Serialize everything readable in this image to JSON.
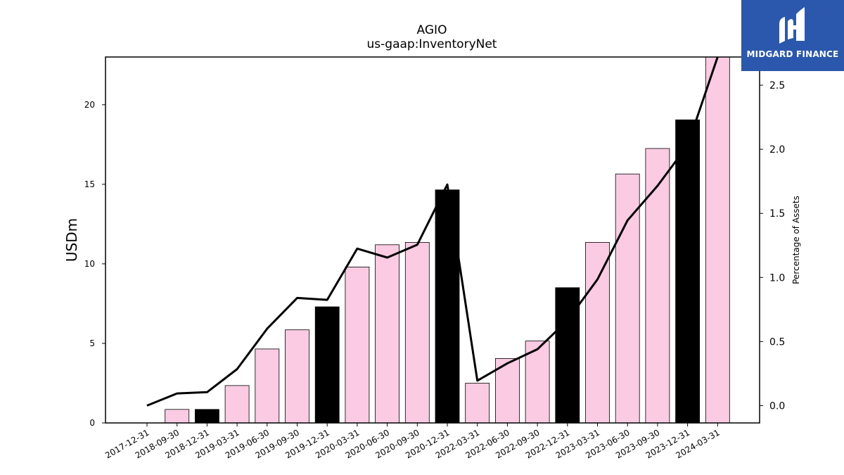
{
  "chart_data": {
    "type": "bar",
    "title": "AGIO",
    "subtitle": "us-gaap:InventoryNet",
    "ylabel": "USDm",
    "y2label": "Percentage of Assets",
    "ylim": [
      0,
      23.0
    ],
    "y2lim": [
      -0.135,
      2.72
    ],
    "yticks": [
      0,
      5,
      10,
      15,
      20
    ],
    "y2ticks": [
      "0.0",
      "0.5",
      "1.0",
      "1.5",
      "2.0",
      "2.5"
    ],
    "categories": [
      "2017-12-31",
      "2018-09-30",
      "2018-12-31",
      "2019-03-31",
      "2019-06-30",
      "2019-09-30",
      "2019-12-31",
      "2020-03-31",
      "2020-06-30",
      "2020-09-30",
      "2020-12-31",
      "2022-03-31",
      "2022-06-30",
      "2022-09-30",
      "2022-12-31",
      "2023-03-31",
      "2023-06-30",
      "2023-09-30",
      "2023-12-31",
      "2024-03-31"
    ],
    "series": [
      {
        "kind": "bar",
        "values": [
          0.0,
          0.85,
          0.85,
          2.35,
          4.65,
          5.85,
          7.3,
          9.8,
          11.2,
          11.35,
          14.65,
          2.5,
          4.05,
          5.15,
          8.5,
          11.35,
          15.65,
          17.25,
          19.05,
          23.0
        ],
        "colors": [
          "#fbcbe3",
          "#fbcbe3",
          "#000000",
          "#fbcbe3",
          "#fbcbe3",
          "#fbcbe3",
          "#000000",
          "#fbcbe3",
          "#fbcbe3",
          "#fbcbe3",
          "#000000",
          "#fbcbe3",
          "#fbcbe3",
          "#fbcbe3",
          "#000000",
          "#fbcbe3",
          "#fbcbe3",
          "#fbcbe3",
          "#000000",
          "#fbcbe3"
        ]
      },
      {
        "kind": "line",
        "axis": "right",
        "color": "#000000",
        "values": [
          0.0,
          0.095,
          0.105,
          0.285,
          0.6,
          0.84,
          0.825,
          1.225,
          1.155,
          1.255,
          1.725,
          0.195,
          0.33,
          0.44,
          0.665,
          0.985,
          1.445,
          1.715,
          2.03,
          2.72
        ]
      }
    ],
    "grid": false,
    "colors": {
      "pink": "#fbcbe3",
      "black": "#000000"
    }
  },
  "logo": {
    "text": "MIDGARD FINANCE",
    "background": "#2b58ac",
    "icon": "midgard-logo-icon"
  }
}
